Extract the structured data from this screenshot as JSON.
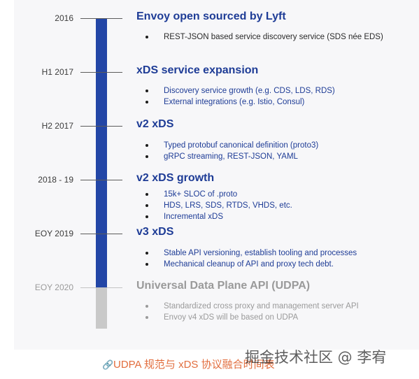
{
  "timeline": [
    {
      "date": "2016",
      "title": "Envoy open sourced by Lyft",
      "items": [
        "REST-JSON based service discovery service (SDS née EDS)"
      ]
    },
    {
      "date": "H1 2017",
      "title": "xDS service expansion",
      "items": [
        "Discovery service growth (e.g. CDS, LDS, RDS)",
        "External integrations (e.g. Istio, Consul)"
      ]
    },
    {
      "date": "H2 2017",
      "title": "v2 xDS",
      "items": [
        "Typed protobuf canonical definition (proto3)",
        "gRPC streaming, REST-JSON, YAML"
      ]
    },
    {
      "date": "2018 - 19",
      "title": "v2 xDS growth",
      "items": [
        "15k+ SLOC of .proto",
        "HDS, LRS, SDS, RTDS, VHDS, etc.",
        "Incremental xDS"
      ]
    },
    {
      "date": "EOY 2019",
      "title": "v3 xDS",
      "items": [
        "Stable API versioning, establish tooling and processes",
        "Mechanical cleanup of API and proxy tech debt."
      ]
    },
    {
      "date": "EOY 2020",
      "title": "Universal Data Plane API (UDPA)",
      "items": [
        "Standardized cross proxy and management server API",
        "Envoy v4 xDS will be based on UDPA"
      ]
    }
  ],
  "caption": {
    "icon": "link-icon",
    "text": "UDPA 规范与 xDS 协议融合时间表"
  },
  "watermark": "掘金技术社区 @ 李宥",
  "colors": {
    "accent": "#2346a6",
    "heading": "#1e3c96",
    "inactive": "#c9c9c9",
    "caption": "#e26d3d"
  }
}
